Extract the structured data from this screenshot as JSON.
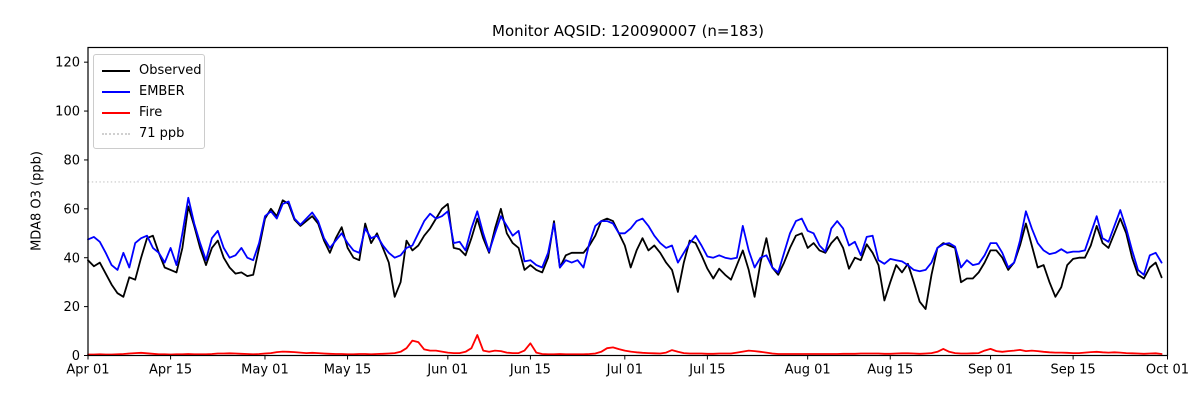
{
  "monitor": {
    "aqsid": "120090007",
    "n": 183
  },
  "chart_data": {
    "type": "line",
    "title": "Monitor AQSID: 120090007 (n=183)",
    "xlabel": "",
    "ylabel": "MDA8 O3 (ppb)",
    "ylim": [
      0,
      126
    ],
    "yticks": [
      0,
      20,
      40,
      60,
      80,
      100,
      120
    ],
    "x_range_days": [
      0,
      183
    ],
    "xtick_days": [
      0,
      14,
      30,
      44,
      61,
      75,
      91,
      105,
      122,
      136,
      153,
      167,
      183
    ],
    "xtick_labels": [
      "Apr 01",
      "Apr 15",
      "May 01",
      "May 15",
      "Jun 01",
      "Jun 15",
      "Jul 01",
      "Jul 15",
      "Aug 01",
      "Aug 15",
      "Sep 01",
      "Sep 15",
      "Oct 01"
    ],
    "grid": false,
    "legend_position": "upper-left",
    "reference_line": {
      "label": "71 ppb",
      "value": 71,
      "color": "#d0d0d0",
      "style": "dotted"
    },
    "legend_items": [
      {
        "label": "Observed",
        "color": "#000000",
        "style": "solid"
      },
      {
        "label": "EMBER",
        "color": "#0000ff",
        "style": "solid"
      },
      {
        "label": "Fire",
        "color": "#ff0000",
        "style": "solid"
      },
      {
        "label": "71 ppb",
        "color": "#d0d0d0",
        "style": "dotted"
      }
    ],
    "series": [
      {
        "name": "Observed",
        "color": "#000000",
        "values": [
          39,
          36.5,
          38,
          33.5,
          29,
          25.5,
          24,
          32,
          31,
          40,
          48,
          49,
          42,
          36,
          35,
          34,
          44,
          61,
          53,
          44,
          37,
          44,
          47,
          40,
          36,
          33.5,
          34,
          32.5,
          33,
          44,
          56,
          60,
          57,
          63.5,
          62,
          55.5,
          53,
          55,
          57,
          54,
          47,
          42,
          48,
          52.5,
          44,
          40,
          39,
          54,
          46,
          50,
          44,
          38,
          24,
          30,
          47,
          43,
          45,
          49,
          52,
          56,
          60,
          62,
          44,
          43.5,
          41,
          48,
          56,
          48,
          42,
          52,
          60,
          50,
          46,
          44,
          35,
          37,
          35,
          34,
          40,
          55,
          36,
          41,
          42,
          42,
          42,
          45,
          49,
          55,
          56,
          55,
          50,
          45,
          36,
          43,
          48,
          43,
          45,
          42,
          38,
          35,
          26,
          38,
          47,
          46,
          41,
          35.5,
          31.5,
          35.5,
          33,
          31,
          37,
          43,
          35,
          24,
          38,
          48,
          36,
          33,
          38,
          44,
          49,
          50,
          44,
          46,
          43,
          42,
          46,
          48.5,
          44,
          35.5,
          40,
          39,
          45.5,
          42,
          37,
          22.5,
          30,
          37,
          34,
          37.5,
          30,
          22,
          19,
          33,
          44,
          46,
          45,
          44,
          30,
          31.5,
          31.5,
          34,
          38,
          43,
          43,
          40,
          35,
          38,
          45,
          54,
          45,
          36,
          37,
          30,
          24,
          28,
          37,
          39.5,
          40,
          40,
          45,
          53,
          46,
          44,
          50,
          56,
          50,
          40,
          33,
          31.5,
          36,
          38,
          32
        ]
      },
      {
        "name": "EMBER",
        "color": "#0000ff",
        "values": [
          47.5,
          48.5,
          46.5,
          42,
          37,
          35,
          42,
          36,
          46,
          48,
          49,
          44,
          42,
          38,
          44,
          37,
          50,
          64.5,
          54,
          46,
          39,
          48,
          51,
          44,
          40,
          41,
          44,
          40,
          39,
          46,
          57,
          59,
          56,
          62,
          63,
          56,
          53.5,
          56,
          58.5,
          55,
          48,
          44,
          47,
          50,
          46,
          43,
          42,
          52,
          48,
          49,
          45,
          42,
          40,
          41,
          44,
          45,
          50,
          55,
          58,
          56,
          57,
          59,
          46,
          46.5,
          43,
          52,
          59,
          50,
          42.5,
          50,
          57,
          53,
          49,
          51,
          38.5,
          39,
          37,
          36,
          42,
          54,
          36,
          39,
          38,
          39,
          36,
          46,
          53,
          55,
          55,
          54,
          50,
          50,
          52,
          55,
          56,
          53,
          49,
          46,
          44,
          45,
          38,
          42,
          46,
          49,
          45,
          40.5,
          40,
          41,
          40,
          39.5,
          40,
          53,
          43,
          36,
          40,
          41,
          36,
          34,
          42,
          50,
          55,
          56,
          51,
          50,
          45,
          42.5,
          52,
          55,
          52,
          45,
          46.5,
          41,
          48.5,
          49,
          39,
          37.5,
          39.5,
          39,
          38.5,
          37,
          35,
          34.5,
          35,
          38,
          44,
          45.5,
          46,
          44.5,
          36,
          39,
          37,
          37.5,
          41,
          46,
          46,
          42,
          36,
          38,
          47,
          59,
          52,
          46,
          43,
          41.5,
          42,
          43.5,
          42,
          42.5,
          42.5,
          43,
          50,
          57,
          48,
          46.5,
          53,
          59.5,
          52,
          43,
          35,
          33,
          41,
          42,
          38
        ]
      },
      {
        "name": "Fire",
        "color": "#ff0000",
        "values": [
          0.4,
          0.4,
          0.5,
          0.4,
          0.4,
          0.5,
          0.6,
          0.8,
          1.0,
          1.1,
          0.9,
          0.7,
          0.5,
          0.5,
          0.4,
          0.5,
          0.5,
          0.6,
          0.5,
          0.5,
          0.5,
          0.6,
          0.8,
          0.8,
          0.9,
          0.8,
          0.7,
          0.6,
          0.5,
          0.6,
          0.8,
          1.0,
          1.4,
          1.6,
          1.5,
          1.4,
          1.2,
          1.0,
          1.1,
          1.0,
          0.8,
          0.7,
          0.6,
          0.6,
          0.5,
          0.5,
          0.6,
          0.6,
          0.5,
          0.6,
          0.7,
          0.8,
          1.0,
          1.5,
          3.0,
          6.1,
          5.5,
          2.5,
          2.0,
          2.0,
          1.6,
          1.2,
          1.0,
          1.0,
          1.5,
          3.0,
          8.4,
          2.0,
          1.5,
          2.0,
          1.8,
          1.2,
          1.0,
          1.0,
          2.0,
          5.0,
          1.2,
          0.6,
          0.5,
          0.5,
          0.6,
          0.5,
          0.5,
          0.5,
          0.5,
          0.6,
          0.8,
          1.5,
          3.0,
          3.3,
          2.6,
          2.0,
          1.6,
          1.3,
          1.1,
          1.0,
          0.9,
          0.8,
          1.2,
          2.2,
          1.5,
          1.0,
          0.8,
          0.8,
          0.8,
          0.7,
          0.7,
          0.8,
          0.8,
          0.8,
          1.2,
          1.6,
          2.0,
          1.8,
          1.5,
          1.2,
          0.8,
          0.6,
          0.6,
          0.6,
          0.6,
          0.6,
          0.6,
          0.6,
          0.6,
          0.6,
          0.6,
          0.6,
          0.7,
          0.7,
          0.7,
          0.8,
          0.8,
          0.8,
          0.8,
          0.7,
          0.7,
          0.8,
          0.9,
          0.9,
          0.8,
          0.7,
          0.8,
          1.0,
          1.5,
          2.7,
          1.5,
          1.0,
          0.8,
          0.8,
          0.9,
          1.0,
          2.0,
          2.7,
          1.8,
          1.5,
          1.8,
          2.0,
          2.3,
          1.8,
          2.0,
          1.8,
          1.5,
          1.3,
          1.2,
          1.2,
          1.1,
          1.0,
          1.0,
          1.2,
          1.4,
          1.5,
          1.3,
          1.2,
          1.3,
          1.2,
          1.0,
          0.9,
          0.8,
          0.7,
          0.8,
          0.9,
          0.6
        ]
      }
    ]
  }
}
